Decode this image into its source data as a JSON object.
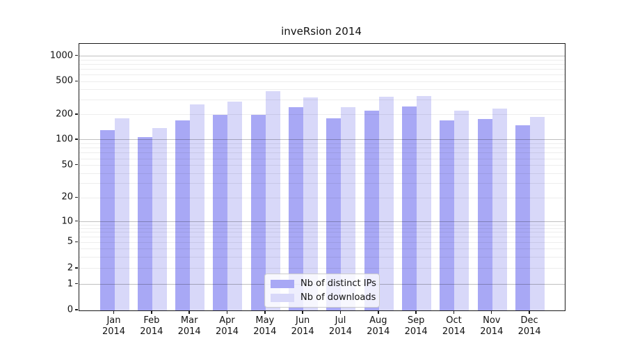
{
  "chart_data": {
    "type": "bar",
    "title": "inveRsion 2014",
    "categories": [
      "Jan 2014",
      "Feb 2014",
      "Mar 2014",
      "Apr 2014",
      "May 2014",
      "Jun 2014",
      "Jul 2014",
      "Aug 2014",
      "Sep 2014",
      "Oct 2014",
      "Nov 2014",
      "Dec 2014"
    ],
    "series": [
      {
        "name": "Nb of distinct IPs",
        "color": "#a8a8f5",
        "values": [
          131,
          108,
          170,
          200,
          199,
          245,
          180,
          223,
          253,
          172,
          178,
          150
        ]
      },
      {
        "name": "Nb of downloads",
        "color": "#d8d8f9",
        "values": [
          181,
          138,
          265,
          288,
          382,
          325,
          245,
          331,
          336,
          222,
          239,
          188
        ]
      }
    ],
    "xlabel": "",
    "ylabel": "",
    "yscale": "symlog",
    "yticks": [
      0,
      1,
      2,
      5,
      10,
      20,
      50,
      100,
      200,
      500,
      1000
    ],
    "ylim": [
      0,
      1400
    ],
    "grid": "on",
    "grid_major_values": [
      1,
      10,
      100,
      1000
    ],
    "legend_position": "lower-center-inside",
    "y_axis_anchor_fractions": [
      [
        0,
        0.0
      ],
      [
        1,
        0.0974
      ],
      [
        2,
        0.1567
      ],
      [
        5,
        0.2551
      ],
      [
        10,
        0.3324
      ],
      [
        20,
        0.4222
      ],
      [
        50,
        0.5439
      ],
      [
        100,
        0.6397
      ],
      [
        200,
        0.734
      ],
      [
        500,
        0.858
      ],
      [
        1000,
        0.954
      ],
      [
        1400,
        1.0
      ]
    ]
  }
}
